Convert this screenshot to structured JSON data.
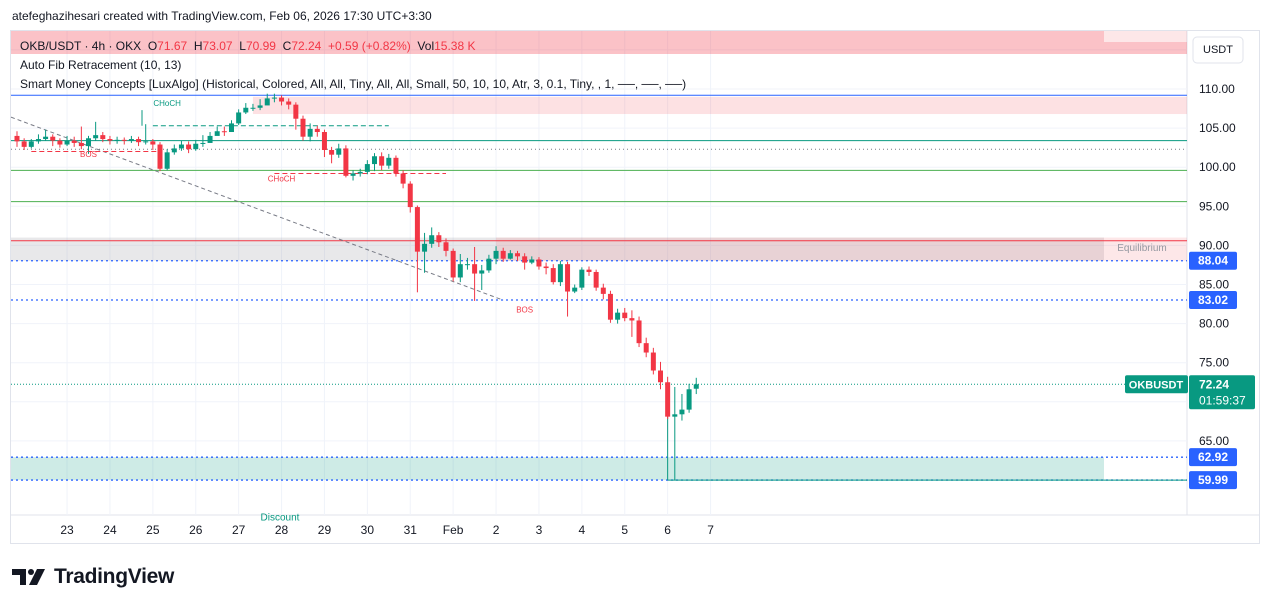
{
  "credit": "atefeghazihesari created with TradingView.com, Feb 06, 2026 17:30 UTC+3:30",
  "legend": {
    "symbol": "OKB/USDT · 4h · OKX",
    "o_label": "O",
    "o": "71.67",
    "h_label": "H",
    "h": "73.07",
    "l_label": "L",
    "l": "70.99",
    "c_label": "C",
    "c": "72.24",
    "change": "+0.59 (+0.82%)",
    "vol_label": "Vol",
    "vol": "15.38 K",
    "fib": "Auto Fib Retracement (10, 13)",
    "smc": "Smart Money Concepts [LuxAlgo] (Historical, Colored, All, All, Tiny, All, All, Small, 50, 10, 10, Atr, 3, 0.1, Tiny, , 1, ──, ──, ──)"
  },
  "footer": {
    "brand": "TradingView"
  },
  "colors": {
    "up": "#089981",
    "down": "#f23645",
    "accent": "#2962ff"
  },
  "chart_data": {
    "type": "candlestick",
    "currency": "USDT",
    "ylim": [
      57,
      117
    ],
    "y_ticks": [
      65,
      75,
      80,
      85,
      90,
      95,
      100,
      105,
      110
    ],
    "y_tick_labels": [
      "65.00",
      "75.00",
      "80.00",
      "85.00",
      "90.00",
      "95.00",
      "100.00",
      "105.00",
      "110.00"
    ],
    "x_ticks": [
      {
        "label": "23",
        "i": 7
      },
      {
        "label": "24",
        "i": 13
      },
      {
        "label": "25",
        "i": 19
      },
      {
        "label": "26",
        "i": 25
      },
      {
        "label": "27",
        "i": 31
      },
      {
        "label": "28",
        "i": 37
      },
      {
        "label": "29",
        "i": 43
      },
      {
        "label": "30",
        "i": 49
      },
      {
        "label": "31",
        "i": 55
      },
      {
        "label": "Feb",
        "i": 61
      },
      {
        "label": "2",
        "i": 67
      },
      {
        "label": "3",
        "i": 73
      },
      {
        "label": "4",
        "i": 79
      },
      {
        "label": "5",
        "i": 85
      },
      {
        "label": "6",
        "i": 91
      },
      {
        "label": "7",
        "i": 97
      }
    ],
    "candles": [
      [
        104.0,
        103.3,
        104.6,
        102.6
      ],
      [
        103.3,
        102.6,
        103.7,
        102.2
      ],
      [
        102.6,
        103.3,
        103.6,
        102.4
      ],
      [
        103.3,
        103.6,
        104.2,
        103.0
      ],
      [
        103.6,
        103.9,
        104.8,
        103.4
      ],
      [
        103.9,
        103.4,
        104.2,
        102.7
      ],
      [
        103.4,
        102.9,
        103.7,
        102.5
      ],
      [
        102.9,
        103.4,
        104.0,
        102.7
      ],
      [
        103.4,
        103.1,
        103.9,
        102.6
      ],
      [
        103.1,
        102.7,
        105.2,
        102.3
      ],
      [
        102.7,
        103.7,
        104.0,
        101.7
      ],
      [
        103.7,
        104.1,
        105.8,
        103.4
      ],
      [
        104.1,
        103.6,
        104.5,
        103.2
      ],
      [
        103.6,
        103.4,
        104.0,
        102.9
      ],
      [
        103.4,
        103.5,
        103.9,
        103.0
      ],
      [
        103.5,
        103.4,
        103.8,
        102.9
      ],
      [
        103.4,
        103.6,
        104.0,
        103.1
      ],
      [
        103.6,
        103.2,
        103.9,
        102.7
      ],
      [
        103.2,
        103.3,
        105.5,
        102.9
      ],
      [
        103.3,
        102.9,
        103.6,
        102.2
      ],
      [
        102.9,
        99.8,
        103.2,
        99.5
      ],
      [
        99.8,
        101.9,
        102.3,
        99.6
      ],
      [
        101.9,
        102.4,
        102.9,
        101.6
      ],
      [
        102.4,
        102.9,
        103.4,
        102.1
      ],
      [
        102.9,
        102.3,
        103.3,
        101.8
      ],
      [
        102.3,
        103.0,
        103.5,
        102.1
      ],
      [
        103.0,
        103.1,
        104.1,
        102.6
      ],
      [
        103.1,
        104.0,
        104.5,
        103.6
      ],
      [
        104.0,
        104.6,
        105.2,
        104.1
      ],
      [
        104.6,
        104.5,
        105.2,
        104.0
      ],
      [
        104.5,
        105.6,
        106.0,
        104.8
      ],
      [
        105.6,
        107.0,
        107.4,
        105.4
      ],
      [
        107.0,
        107.6,
        108.2,
        106.8
      ],
      [
        107.6,
        107.6,
        108.1,
        107.2
      ],
      [
        107.6,
        107.9,
        108.7,
        107.3
      ],
      [
        107.9,
        108.8,
        109.4,
        108.1
      ],
      [
        108.8,
        108.9,
        109.4,
        108.3
      ],
      [
        108.9,
        108.4,
        109.2,
        107.9
      ],
      [
        108.4,
        108.0,
        108.8,
        107.4
      ],
      [
        108.0,
        106.2,
        108.3,
        104.8
      ],
      [
        106.2,
        103.9,
        106.6,
        103.4
      ],
      [
        103.9,
        104.9,
        105.6,
        103.3
      ],
      [
        104.9,
        104.5,
        105.3,
        103.9
      ],
      [
        104.5,
        102.2,
        104.8,
        101.3
      ],
      [
        102.2,
        101.6,
        102.6,
        100.5
      ],
      [
        101.6,
        102.4,
        103.0,
        101.2
      ],
      [
        102.4,
        98.9,
        102.8,
        98.7
      ],
      [
        98.9,
        99.2,
        99.6,
        98.3
      ],
      [
        99.2,
        99.4,
        99.8,
        98.8
      ],
      [
        99.4,
        100.4,
        100.9,
        99.1
      ],
      [
        100.4,
        101.4,
        101.8,
        99.5
      ],
      [
        101.4,
        100.2,
        101.9,
        99.6
      ],
      [
        100.2,
        101.2,
        101.7,
        99.8
      ],
      [
        101.2,
        99.2,
        101.5,
        98.8
      ],
      [
        99.2,
        97.9,
        99.6,
        97.3
      ],
      [
        97.9,
        94.9,
        98.2,
        94.2
      ],
      [
        94.9,
        89.2,
        95.1,
        84.0
      ],
      [
        89.2,
        90.2,
        91.6,
        86.5
      ],
      [
        90.2,
        91.3,
        92.3,
        89.7
      ],
      [
        91.3,
        90.4,
        91.7,
        89.8
      ],
      [
        90.4,
        89.3,
        90.9,
        88.6
      ],
      [
        89.3,
        85.9,
        89.6,
        85.4
      ],
      [
        85.9,
        87.6,
        88.9,
        85.3
      ],
      [
        87.6,
        87.6,
        88.4,
        86.9
      ],
      [
        87.6,
        86.4,
        89.8,
        82.9
      ],
      [
        86.4,
        86.8,
        87.5,
        84.3
      ],
      [
        86.8,
        88.3,
        88.8,
        86.5
      ],
      [
        88.3,
        89.3,
        89.9,
        87.6
      ],
      [
        89.3,
        88.3,
        89.7,
        87.9
      ],
      [
        88.3,
        89.0,
        89.4,
        88.2
      ],
      [
        89.0,
        88.6,
        89.3,
        88.0
      ],
      [
        88.6,
        87.8,
        89.0,
        86.9
      ],
      [
        87.8,
        88.2,
        88.6,
        87.6
      ],
      [
        88.2,
        87.3,
        88.5,
        86.9
      ],
      [
        87.3,
        87.1,
        87.8,
        86.3
      ],
      [
        87.1,
        85.3,
        87.6,
        85.0
      ],
      [
        85.3,
        87.6,
        88.0,
        84.8
      ],
      [
        87.6,
        84.1,
        87.9,
        80.9
      ],
      [
        84.1,
        84.6,
        85.0,
        83.9
      ],
      [
        84.6,
        86.9,
        87.2,
        84.3
      ],
      [
        86.9,
        86.6,
        87.3,
        86.1
      ],
      [
        86.6,
        84.6,
        86.9,
        84.2
      ],
      [
        84.6,
        83.8,
        85.1,
        83.1
      ],
      [
        83.8,
        80.5,
        84.2,
        80.1
      ],
      [
        80.5,
        81.4,
        81.9,
        80.0
      ],
      [
        81.4,
        80.7,
        82.0,
        80.3
      ],
      [
        80.7,
        80.4,
        81.7,
        78.3
      ],
      [
        80.4,
        77.5,
        80.9,
        77.0
      ],
      [
        77.5,
        76.3,
        78.2,
        75.7
      ],
      [
        76.3,
        74.0,
        76.9,
        73.5
      ],
      [
        74.0,
        72.5,
        75.1,
        71.6
      ],
      [
        72.5,
        68.1,
        73.2,
        67.8
      ],
      [
        68.1,
        68.4,
        71.9,
        60.0
      ],
      [
        68.4,
        69.0,
        71.0,
        67.6
      ],
      [
        69.0,
        71.6,
        72.3,
        68.6
      ],
      [
        71.67,
        72.24,
        73.07,
        70.99
      ]
    ],
    "levels": [
      {
        "price": 88.04,
        "label": "88.04"
      },
      {
        "price": 83.02,
        "label": "83.02"
      },
      {
        "price": 62.92,
        "label": "62.92"
      },
      {
        "price": 59.99,
        "label": "59.99"
      }
    ],
    "zones": {
      "equilibrium": "Equilibrium",
      "discount": "Discount"
    },
    "structure_labels": [
      {
        "text": "CHoCH",
        "price": 107.8,
        "i": 21,
        "color": "up"
      },
      {
        "text": "BOS",
        "price": 101.3,
        "i": 10,
        "color": "down"
      },
      {
        "text": "CHoCH",
        "price": 98.2,
        "i": 37,
        "color": "down"
      },
      {
        "text": "BOS",
        "price": 81.4,
        "i": 71,
        "color": "down"
      }
    ],
    "last_price": {
      "symbol": "OKBUSDT",
      "price": "72.24",
      "countdown": "01:59:37",
      "value": 72.24
    }
  }
}
